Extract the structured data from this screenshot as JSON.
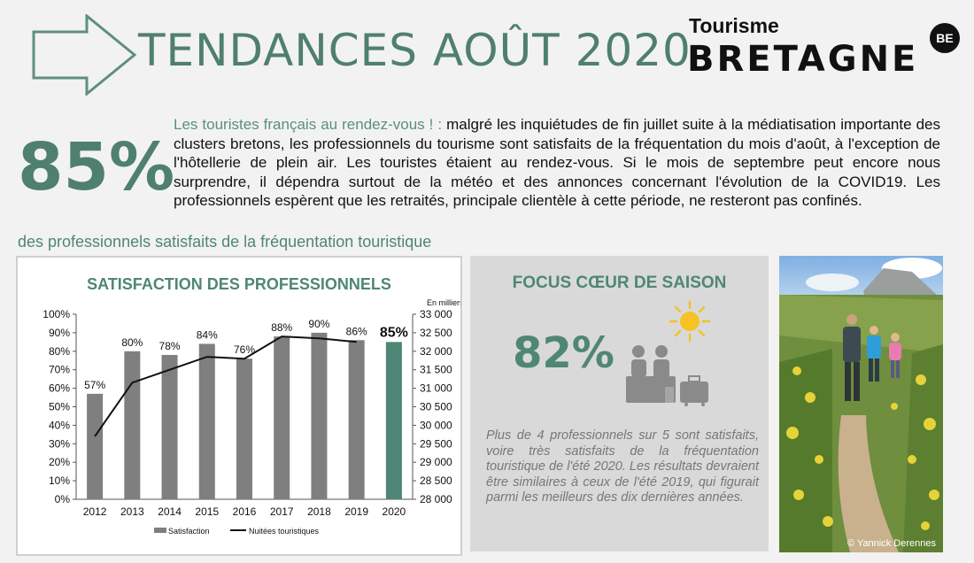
{
  "header": {
    "title": "TENDANCES AOÛT 2020",
    "logo_small": "Tourisme",
    "logo_big": "BRETAGNE",
    "logo_badge": "BE"
  },
  "intro": {
    "percent": "85%",
    "lead": "Les touristes français au rendez-vous ! :",
    "body": " malgré les inquiétudes de fin juillet suite à la médiatisation importante des clusters bretons, les professionnels du tourisme sont satisfaits de la fréquentation du mois d'août, à l'exception de l'hôtellerie de plein air. Les touristes étaient au rendez-vous. Si le mois de septembre peut encore nous surprendre, il dépendra surtout de la météo et des annonces concernant l'évolution de la COVID19. Les professionnels espèrent que les retraités, principale clientèle à cette période, ne resteront pas confinés.",
    "subtitle": "des professionnels satisfaits de la fréquentation touristique"
  },
  "chart_data": {
    "type": "bar",
    "title": "SATISFACTION DES PROFESSIONNELS",
    "categories": [
      "2012",
      "2013",
      "2014",
      "2015",
      "2016",
      "2017",
      "2018",
      "2019",
      "2020"
    ],
    "series": [
      {
        "name": "Satisfaction",
        "type": "bar",
        "axis": "left",
        "values": [
          57,
          80,
          78,
          84,
          76,
          88,
          90,
          86,
          85
        ],
        "labels": [
          "57%",
          "80%",
          "78%",
          "84%",
          "76%",
          "88%",
          "90%",
          "86%",
          "85%"
        ]
      },
      {
        "name": "Nuitées touristiques",
        "type": "line",
        "axis": "right",
        "values": [
          29700,
          31150,
          31500,
          31850,
          31800,
          32400,
          32350,
          32250,
          null
        ]
      }
    ],
    "y_left": {
      "min": 0,
      "max": 100,
      "ticks": [
        "0%",
        "10%",
        "20%",
        "30%",
        "40%",
        "50%",
        "60%",
        "70%",
        "80%",
        "90%",
        "100%"
      ]
    },
    "y_right": {
      "min": 28000,
      "max": 33000,
      "unit_label": "En milliers",
      "ticks": [
        "28 000",
        "28 500",
        "29 000",
        "29 500",
        "30 000",
        "30 500",
        "31 000",
        "31 500",
        "32 000",
        "32 500",
        "33 000"
      ]
    },
    "legend": [
      "Satisfaction",
      "Nuitées touristiques"
    ],
    "legend_position": "bottom",
    "colors": {
      "bar": "#7f7f7f",
      "highlight_bar": "#4f8676",
      "line": "#111111"
    }
  },
  "focus": {
    "title": "FOCUS CŒUR DE SAISON",
    "percent": "82%",
    "text": "Plus de 4 professionnels sur 5 sont satisfaits, voire très satisfaits de la fréquentation touristique de l'été 2020. Les résultats devraient être similaires à ceux de l'été 2019, qui figurait parmi les meilleurs des dix dernières années."
  },
  "photo": {
    "credit": "© Yannick Derennes"
  },
  "colors": {
    "accent": "#4f7f6f",
    "panel_grey": "#d9d9d9",
    "background": "#f2f2f2"
  }
}
